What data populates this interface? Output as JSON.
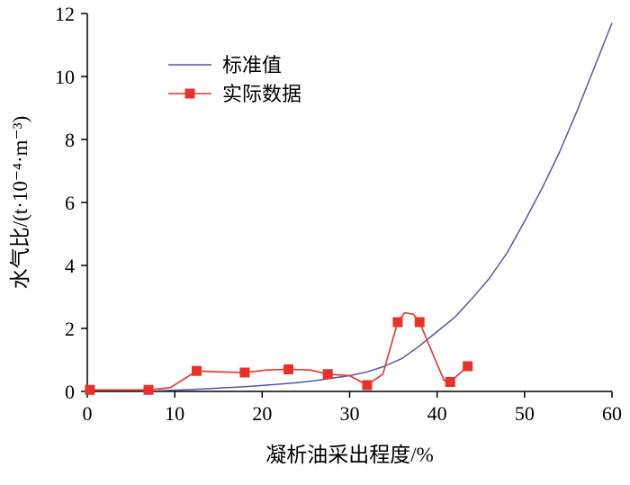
{
  "figure": {
    "background": "#ffffff",
    "axis_color": "#000000",
    "text_color": "#000000"
  },
  "chart_data": {
    "type": "line",
    "title": "",
    "xlabel": "凝析油采出程度/%",
    "ylabel": "水气比/(t·10⁻⁴·m⁻³)",
    "xlim": [
      0,
      60
    ],
    "ylim": [
      0,
      12
    ],
    "xticks": [
      0,
      10,
      20,
      30,
      40,
      50,
      60
    ],
    "yticks": [
      0,
      2,
      4,
      6,
      8,
      10,
      12
    ],
    "grid": false,
    "legend": {
      "position": "inside-top-left",
      "items": [
        "标准值",
        "实际数据"
      ]
    },
    "series": [
      {
        "name": "标准值",
        "color": "#5058a5",
        "marker": "none",
        "line_width": 1.5,
        "x": [
          8,
          10,
          12,
          14,
          16,
          18,
          20,
          22,
          24,
          26,
          28,
          30,
          32,
          34,
          36,
          38,
          40,
          42,
          44,
          46,
          48,
          50,
          52,
          54,
          56,
          58,
          60
        ],
        "y": [
          0.02,
          0.04,
          0.06,
          0.09,
          0.12,
          0.15,
          0.19,
          0.23,
          0.28,
          0.34,
          0.42,
          0.5,
          0.62,
          0.8,
          1.05,
          1.45,
          1.9,
          2.35,
          2.95,
          3.6,
          4.4,
          5.4,
          6.45,
          7.6,
          8.9,
          10.3,
          11.7
        ]
      },
      {
        "name": "实际数据",
        "color": "#e93128",
        "marker": "square",
        "marker_size": 11,
        "line_width": 1.6,
        "x": [
          0.3,
          7,
          9.5,
          12.5,
          15,
          18,
          20.5,
          23,
          25.5,
          27.5,
          30,
          32,
          33.8,
          35.5,
          36.3,
          37.3,
          38,
          39.8,
          40.8,
          41.5,
          43.5
        ],
        "y": [
          0.05,
          0.05,
          0.12,
          0.65,
          0.62,
          0.6,
          0.68,
          0.7,
          0.68,
          0.55,
          0.5,
          0.2,
          0.55,
          2.2,
          2.5,
          2.45,
          2.2,
          1.0,
          0.35,
          0.3,
          0.8
        ],
        "marker_x": [
          0.3,
          7,
          12.5,
          18,
          23,
          27.5,
          32,
          35.5,
          38,
          41.5,
          43.5
        ],
        "marker_y": [
          0.05,
          0.05,
          0.65,
          0.6,
          0.7,
          0.55,
          0.2,
          2.2,
          2.2,
          0.3,
          0.8
        ]
      }
    ]
  }
}
